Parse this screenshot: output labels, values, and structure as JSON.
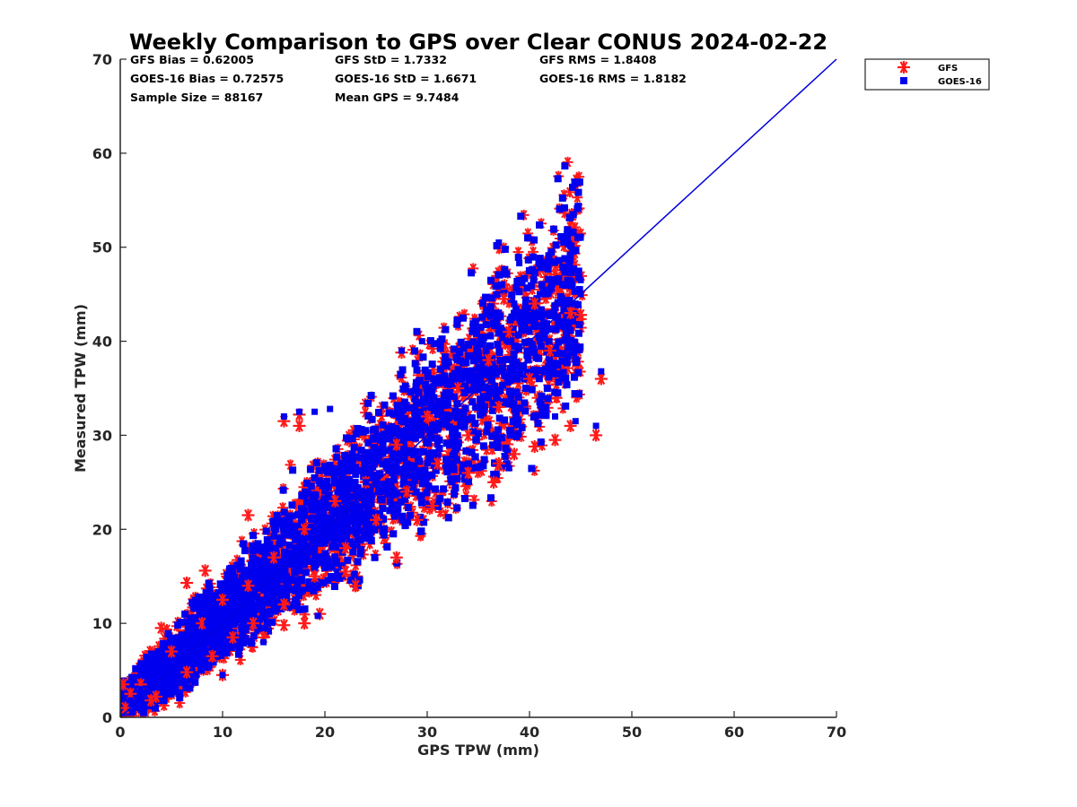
{
  "chart_data": {
    "type": "scatter",
    "title": "Weekly Comparison to GPS over Clear CONUS 2024-02-22",
    "xlabel": "GPS TPW (mm)",
    "ylabel": "Measured TPW (mm)",
    "xlim": [
      0,
      70
    ],
    "ylim": [
      0,
      70
    ],
    "xticks": [
      "0",
      "10",
      "20",
      "30",
      "40",
      "50",
      "60",
      "70"
    ],
    "yticks": [
      "0",
      "10",
      "20",
      "30",
      "40",
      "50",
      "60",
      "70"
    ],
    "grid": false,
    "legend_position": "outside-top-right",
    "stats": [
      "GFS Bias = 0.62005",
      "GFS StD = 1.7332",
      "GFS RMS = 1.8408",
      "GOES-16 Bias = 0.72575",
      "GOES-16 StD = 1.6671",
      "GOES-16 RMS = 1.8182",
      "Sample Size = 88167",
      "Mean GPS = 9.7484"
    ],
    "reference_line": {
      "x": [
        0,
        70
      ],
      "y": [
        0,
        70
      ],
      "color": "#0000dd"
    },
    "series": [
      {
        "name": "GFS",
        "marker": "asterisk",
        "color": "#ff1a1a",
        "points": [
          [
            2,
            3.5
          ],
          [
            3.5,
            2.2
          ],
          [
            5,
            7
          ],
          [
            6.5,
            4.8
          ],
          [
            8,
            10
          ],
          [
            9,
            6.5
          ],
          [
            10,
            12.5
          ],
          [
            11,
            8.5
          ],
          [
            12.5,
            14
          ],
          [
            13,
            10
          ],
          [
            15,
            17
          ],
          [
            16,
            12
          ],
          [
            18,
            20
          ],
          [
            19,
            15
          ],
          [
            21,
            23
          ],
          [
            22,
            18
          ],
          [
            24,
            25
          ],
          [
            25,
            21
          ],
          [
            27,
            29
          ],
          [
            28,
            24
          ],
          [
            30,
            32
          ],
          [
            31,
            27
          ],
          [
            33,
            35
          ],
          [
            34,
            30
          ],
          [
            36,
            38
          ],
          [
            37,
            33
          ],
          [
            38,
            41
          ],
          [
            40,
            36
          ],
          [
            42,
            39
          ],
          [
            44,
            43
          ],
          [
            16,
            31.5
          ],
          [
            17.5,
            31
          ],
          [
            17.5,
            32.2
          ],
          [
            27.5,
            38.8
          ],
          [
            37.5,
            44.5
          ],
          [
            40.5,
            44
          ],
          [
            45,
            42.8
          ],
          [
            46.5,
            30
          ],
          [
            47,
            36
          ],
          [
            42.5,
            29.5
          ],
          [
            40.5,
            28.8
          ],
          [
            38.5,
            28
          ],
          [
            36.5,
            25
          ],
          [
            44,
            31
          ],
          [
            29,
            21
          ],
          [
            30.5,
            22.5
          ],
          [
            37,
            27
          ],
          [
            34,
            26
          ],
          [
            12.5,
            21.5
          ],
          [
            6.5,
            14.3
          ],
          [
            8.3,
            15.6
          ],
          [
            10,
            4.5
          ],
          [
            19.5,
            11
          ],
          [
            23,
            14
          ],
          [
            22,
            15.5
          ],
          [
            27,
            17
          ],
          [
            4,
            9.5
          ],
          [
            3,
            1.8
          ],
          [
            1,
            2.5
          ],
          [
            0.3,
            3.5
          ],
          [
            0.5,
            1
          ],
          [
            14,
            8.5
          ],
          [
            18,
            10
          ],
          [
            16,
            9.8
          ]
        ]
      },
      {
        "name": "GOES-16",
        "marker": "square",
        "color": "#0000ee",
        "points": [
          [
            1,
            1.8
          ],
          [
            2,
            3
          ],
          [
            3.5,
            4
          ],
          [
            5,
            5.5
          ],
          [
            6,
            7.5
          ],
          [
            7,
            6
          ],
          [
            8.5,
            10
          ],
          [
            10,
            9
          ],
          [
            11,
            12.5
          ],
          [
            12,
            11
          ],
          [
            13.5,
            15
          ],
          [
            15,
            13
          ],
          [
            16,
            17
          ],
          [
            17.5,
            16
          ],
          [
            19,
            20
          ],
          [
            20,
            18.5
          ],
          [
            21.5,
            22
          ],
          [
            23,
            21
          ],
          [
            24,
            25
          ],
          [
            25.5,
            24
          ],
          [
            27,
            28
          ],
          [
            28,
            26
          ],
          [
            29.5,
            31
          ],
          [
            31,
            29
          ],
          [
            32,
            34
          ],
          [
            33.5,
            32
          ],
          [
            35,
            37
          ],
          [
            36,
            35
          ],
          [
            37,
            39
          ],
          [
            38.5,
            38
          ],
          [
            40,
            41
          ],
          [
            41,
            40
          ],
          [
            42,
            43
          ],
          [
            43,
            42
          ],
          [
            44.5,
            44
          ],
          [
            45,
            45
          ],
          [
            37,
            50.5
          ],
          [
            39,
            48.3
          ],
          [
            39,
            46.5
          ],
          [
            38.5,
            44
          ],
          [
            41,
            45
          ],
          [
            45,
            46.5
          ],
          [
            47,
            36.8
          ],
          [
            46.5,
            31
          ],
          [
            44.5,
            31.5
          ],
          [
            42.5,
            32
          ],
          [
            38,
            26.5
          ],
          [
            16,
            32
          ],
          [
            17.5,
            32.5
          ],
          [
            19,
            32.5
          ],
          [
            20.5,
            32.8
          ],
          [
            27.5,
            39
          ],
          [
            29.5,
            40
          ],
          [
            19.3,
            10.8
          ],
          [
            10,
            4.5
          ],
          [
            14,
            8
          ],
          [
            4.5,
            5
          ],
          [
            12,
            12
          ],
          [
            24,
            22.5
          ],
          [
            33,
            30
          ]
        ]
      }
    ]
  }
}
